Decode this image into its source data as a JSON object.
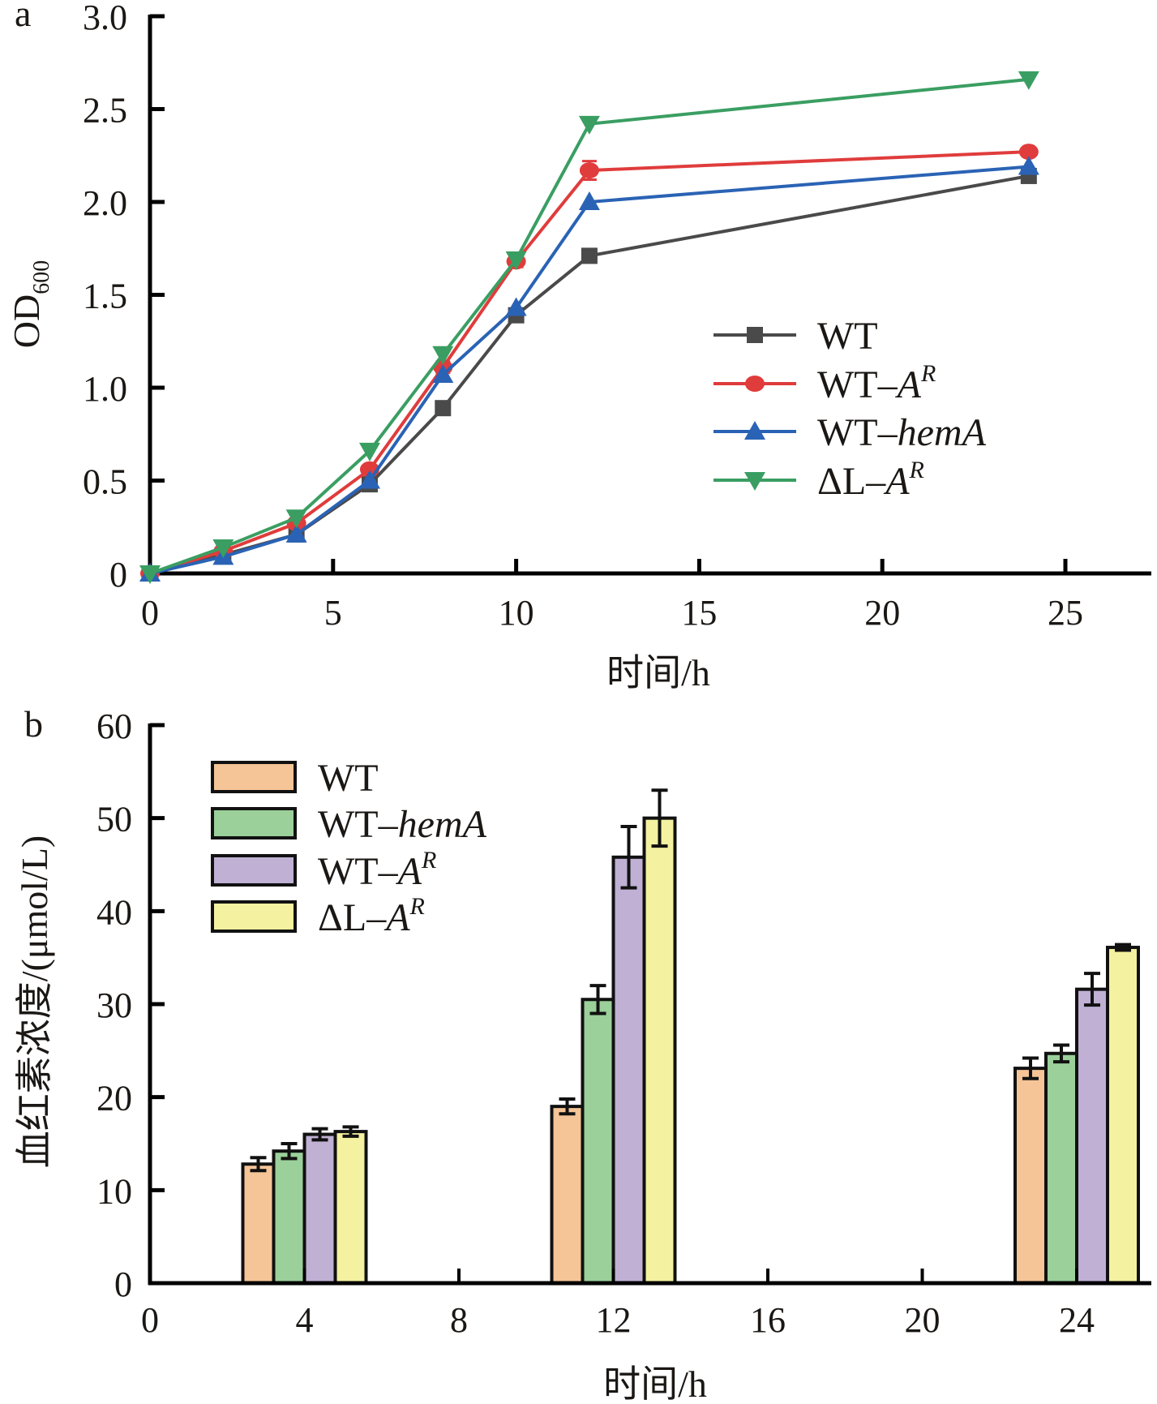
{
  "chart_data": [
    {
      "type": "line",
      "panel_label": "a",
      "title": "",
      "xlabel": "时间/h",
      "ylabel": "OD",
      "ylabel_subscript": "600",
      "xlim": [
        0,
        27.5
      ],
      "ylim": [
        0,
        3.0
      ],
      "xticks": [
        0,
        5,
        10,
        15,
        20,
        25
      ],
      "xtick_labels": [
        "0",
        "5",
        "10",
        "15",
        "20",
        "25"
      ],
      "yticks": [
        0,
        0.5,
        1.0,
        1.5,
        2.0,
        2.5,
        3.0
      ],
      "ytick_labels": [
        "0",
        "0.5",
        "1.0",
        "1.5",
        "2.0",
        "2.5",
        "3.0"
      ],
      "grid": false,
      "legend_position": "center-right",
      "x": [
        0,
        2,
        4,
        6,
        8,
        10,
        12,
        24
      ],
      "series": [
        {
          "name": "WT",
          "name_main": "WT",
          "name_italic": "",
          "name_sup": "",
          "marker": "square",
          "color": "#4a4a4a",
          "values": [
            0.0,
            0.1,
            0.21,
            0.48,
            0.89,
            1.39,
            1.71,
            2.14
          ],
          "errors": [
            0.01,
            0.01,
            0.01,
            0.02,
            0.02,
            0.02,
            0.02,
            0.02
          ]
        },
        {
          "name": "WT-A^R",
          "name_main": "WT–",
          "name_italic": "A",
          "name_sup": "R",
          "marker": "circle",
          "color": "#e03c3c",
          "values": [
            0.0,
            0.12,
            0.27,
            0.56,
            1.11,
            1.68,
            2.17,
            2.27
          ],
          "errors": [
            0.01,
            0.02,
            0.02,
            0.02,
            0.03,
            0.03,
            0.05,
            0.02
          ]
        },
        {
          "name": "WT-hemA",
          "name_main": "WT–",
          "name_italic": "hemA",
          "name_sup": "",
          "marker": "triangle-up",
          "color": "#2a63b5",
          "values": [
            0.0,
            0.09,
            0.21,
            0.5,
            1.07,
            1.43,
            2.0,
            2.19
          ],
          "errors": [
            0.01,
            0.01,
            0.01,
            0.02,
            0.02,
            0.02,
            0.02,
            0.02
          ]
        },
        {
          "name": "ΔL-A^R",
          "name_main": "ΔL–",
          "name_italic": "A",
          "name_sup": "R",
          "marker": "triangle-down",
          "color": "#3a9e62",
          "values": [
            0.0,
            0.14,
            0.3,
            0.66,
            1.18,
            1.69,
            2.42,
            2.66
          ],
          "errors": [
            0.01,
            0.01,
            0.01,
            0.02,
            0.02,
            0.02,
            0.02,
            0.02
          ]
        }
      ]
    },
    {
      "type": "bar",
      "panel_label": "b",
      "title": "",
      "xlabel": "时间/h",
      "ylabel": "血红素浓度/(μmol/L)",
      "xlim": [
        0,
        26
      ],
      "ylim": [
        0,
        60
      ],
      "xticks": [
        0,
        4,
        8,
        12,
        16,
        20,
        24
      ],
      "xtick_labels": [
        "0",
        "4",
        "8",
        "12",
        "16",
        "20",
        "24"
      ],
      "yticks": [
        0,
        10,
        20,
        30,
        40,
        50,
        60
      ],
      "ytick_labels": [
        "0",
        "10",
        "20",
        "30",
        "40",
        "50",
        "60"
      ],
      "grid": false,
      "legend_position": "top-left",
      "categories": [
        4,
        12,
        24
      ],
      "series": [
        {
          "name": "WT",
          "name_main": "WT",
          "name_italic": "",
          "name_sup": "",
          "color": "#f5c597",
          "values": [
            12.8,
            19.0,
            23.1
          ],
          "errors": [
            0.7,
            0.8,
            1.1
          ]
        },
        {
          "name": "WT-hemA",
          "name_main": "WT–",
          "name_italic": "hemA",
          "name_sup": "",
          "color": "#9bd09a",
          "values": [
            14.2,
            30.5,
            24.7
          ],
          "errors": [
            0.8,
            1.5,
            0.9
          ]
        },
        {
          "name": "WT-A^R",
          "name_main": "WT–",
          "name_italic": "A",
          "name_sup": "R",
          "color": "#bfb0d4",
          "values": [
            16.0,
            45.8,
            31.6
          ],
          "errors": [
            0.6,
            3.3,
            1.7
          ]
        },
        {
          "name": "ΔL-A^R",
          "name_main": "ΔL–",
          "name_italic": "A",
          "name_sup": "R",
          "color": "#f4f1a0",
          "values": [
            16.3,
            50.0,
            36.1
          ],
          "errors": [
            0.5,
            3.0,
            0.3
          ]
        }
      ]
    }
  ]
}
